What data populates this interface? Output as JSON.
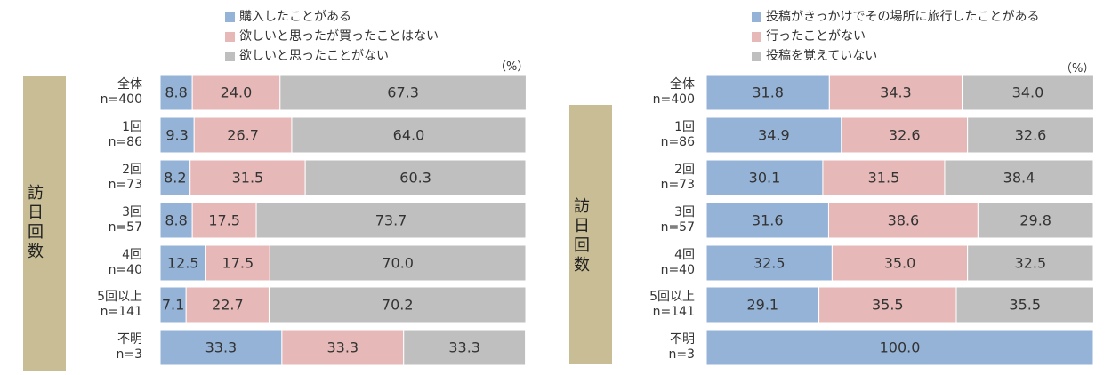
{
  "chart_data": [
    {
      "type": "bar",
      "orientation": "horizontal",
      "stacked": true,
      "unit": "（%）",
      "group_label": "訪日回数",
      "categories": [
        [
          "全体",
          "n=400"
        ],
        [
          "1回",
          "n=86"
        ],
        [
          "2回",
          "n=73"
        ],
        [
          "3回",
          "n=57"
        ],
        [
          "4回",
          "n=40"
        ],
        [
          "5回以上",
          "n=141"
        ],
        [
          "不明",
          "n=3"
        ]
      ],
      "series": [
        {
          "name": "購入したことがある",
          "color": "#95b3d7",
          "values": [
            8.8,
            9.3,
            8.2,
            8.8,
            12.5,
            7.1,
            33.3
          ]
        },
        {
          "name": "欲しいと思ったが買ったことはない",
          "color": "#e6b9b8",
          "values": [
            24.0,
            26.7,
            31.5,
            17.5,
            17.5,
            22.7,
            33.3
          ]
        },
        {
          "name": "欲しいと思ったことがない",
          "color": "#bfbfbf",
          "values": [
            67.3,
            64.0,
            60.3,
            73.7,
            70.0,
            70.2,
            33.3
          ]
        }
      ],
      "xlim": [
        0,
        100
      ]
    },
    {
      "type": "bar",
      "orientation": "horizontal",
      "stacked": true,
      "unit": "（%）",
      "group_label": "訪日回数",
      "categories": [
        [
          "全体",
          "n=400"
        ],
        [
          "1回",
          "n=86"
        ],
        [
          "2回",
          "n=73"
        ],
        [
          "3回",
          "n=57"
        ],
        [
          "4回",
          "n=40"
        ],
        [
          "5回以上",
          "n=141"
        ],
        [
          "不明",
          "n=3"
        ]
      ],
      "series": [
        {
          "name": "投稿がきっかけでその場所に旅行したことがある",
          "color": "#95b3d7",
          "values": [
            31.8,
            34.9,
            30.1,
            31.6,
            32.5,
            29.1,
            100.0
          ]
        },
        {
          "name": "行ったことがない",
          "color": "#e6b9b8",
          "values": [
            34.3,
            32.6,
            31.5,
            38.6,
            35.0,
            35.5,
            null
          ]
        },
        {
          "name": "投稿を覚えていない",
          "color": "#bfbfbf",
          "values": [
            34.0,
            32.6,
            38.4,
            29.8,
            32.5,
            35.5,
            null
          ]
        }
      ],
      "xlim": [
        0,
        100
      ]
    }
  ]
}
